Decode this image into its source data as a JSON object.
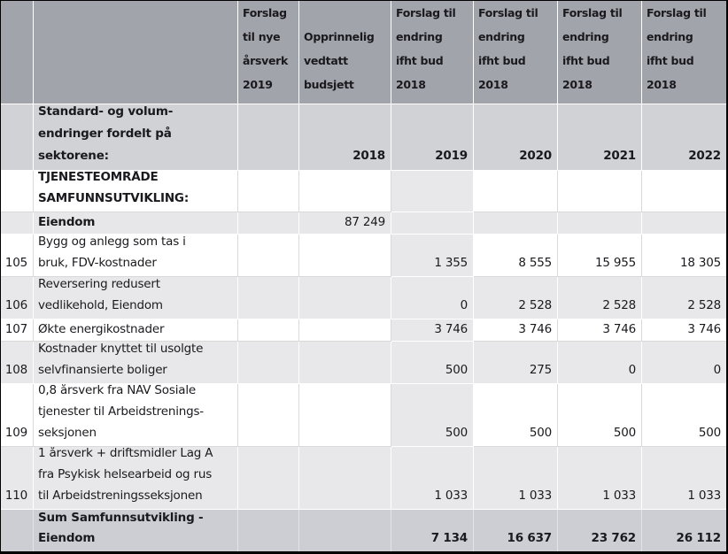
{
  "colors": {
    "header_bg": "#a2a4ab",
    "intro_row_bg": "#d1d2d6",
    "shaded_row_bg": "#e8e8ea",
    "highlight_col_bg": "#e8e8ea",
    "group_row_bg": "#e7e7e9",
    "sum_row_bg": "#cdced3",
    "grid_line_on_white": "#d9d9d9",
    "grid_line_on_shaded": "#ffffff",
    "text": "#1a1a1e",
    "table_border": "#000000"
  },
  "header": {
    "aarsverk": [
      "Forslag",
      "til nye",
      "årsverk",
      "2019"
    ],
    "budsjett": [
      "Opprinnelig",
      "vedtatt",
      "budsjett"
    ],
    "endring": [
      "Forslag til",
      "endring",
      "ifht bud",
      "2018"
    ]
  },
  "intro": {
    "label": [
      "Standard- og volum-",
      "endringer fordelt på",
      "sektorene:"
    ],
    "year_budsjett": "2018",
    "years": [
      "2019",
      "2020",
      "2021",
      "2022"
    ]
  },
  "section": {
    "label": [
      "TJENESTEOMRÅDE",
      "SAMFUNNSUTVIKLING:"
    ]
  },
  "group": {
    "label": "Eiendom",
    "budsjett": "87 249"
  },
  "rows": [
    {
      "num": "105",
      "desc": [
        "Bygg og anlegg som tas i",
        "bruk, FDV-kostnader"
      ],
      "values": [
        "1 355",
        "8 555",
        "15 955",
        "18 305"
      ]
    },
    {
      "num": "106",
      "desc": [
        "Reversering redusert",
        "vedlikehold, Eiendom"
      ],
      "values": [
        "0",
        "2 528",
        "2 528",
        "2 528"
      ]
    },
    {
      "num": "107",
      "desc": [
        "Økte energikostnader"
      ],
      "values": [
        "3 746",
        "3 746",
        "3 746",
        "3 746"
      ]
    },
    {
      "num": "108",
      "desc": [
        "Kostnader knyttet til usolgte",
        "selvfinansierte boliger"
      ],
      "values": [
        "500",
        "275",
        "0",
        "0"
      ]
    },
    {
      "num": "109",
      "desc": [
        "0,8 årsverk fra NAV Sosiale",
        "tjenester til Arbeidstrenings-",
        "seksjonen"
      ],
      "values": [
        "500",
        "500",
        "500",
        "500"
      ]
    },
    {
      "num": "110",
      "desc": [
        "1 årsverk + driftsmidler Lag A",
        "fra Psykisk helsearbeid og rus",
        "til Arbeidstreningsseksjonen"
      ],
      "values": [
        "1 033",
        "1 033",
        "1 033",
        "1 033"
      ]
    }
  ],
  "sum": {
    "label": [
      "Sum Samfunnsutvikling -",
      "Eiendom"
    ],
    "values": [
      "7 134",
      "16 637",
      "23 762",
      "26 112"
    ]
  }
}
